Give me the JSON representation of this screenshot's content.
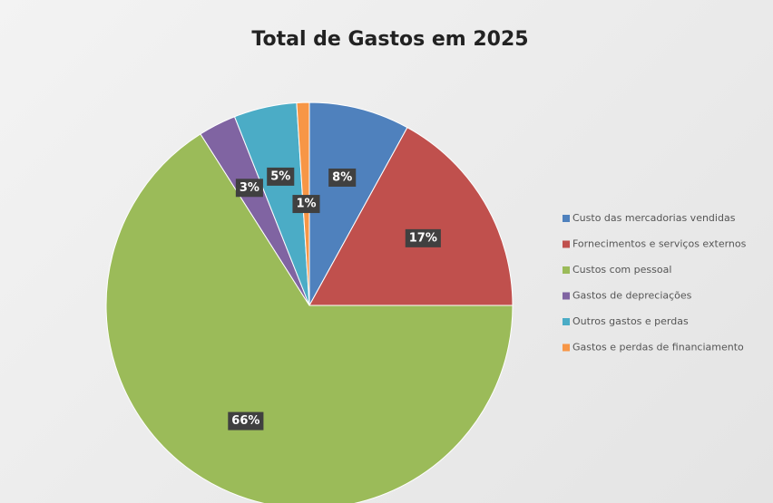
{
  "chart_data": {
    "type": "pie",
    "title": "Total de Gastos em 2025",
    "categories": [
      "Custo das mercadorias vendidas",
      "Fornecimentos e serviços externos",
      "Custos com pessoal",
      "Gastos de depreciações",
      "Outros gastos e perdas",
      "Gastos e perdas de financiamento"
    ],
    "values": [
      8,
      17,
      66,
      3,
      5,
      1
    ],
    "value_labels": [
      "8%",
      "17%",
      "66%",
      "3%",
      "5%",
      "1%"
    ],
    "colors": [
      "#4f81bd",
      "#c0504d",
      "#9bbb59",
      "#8064a2",
      "#4bacc6",
      "#f79646"
    ],
    "legend": "right"
  }
}
